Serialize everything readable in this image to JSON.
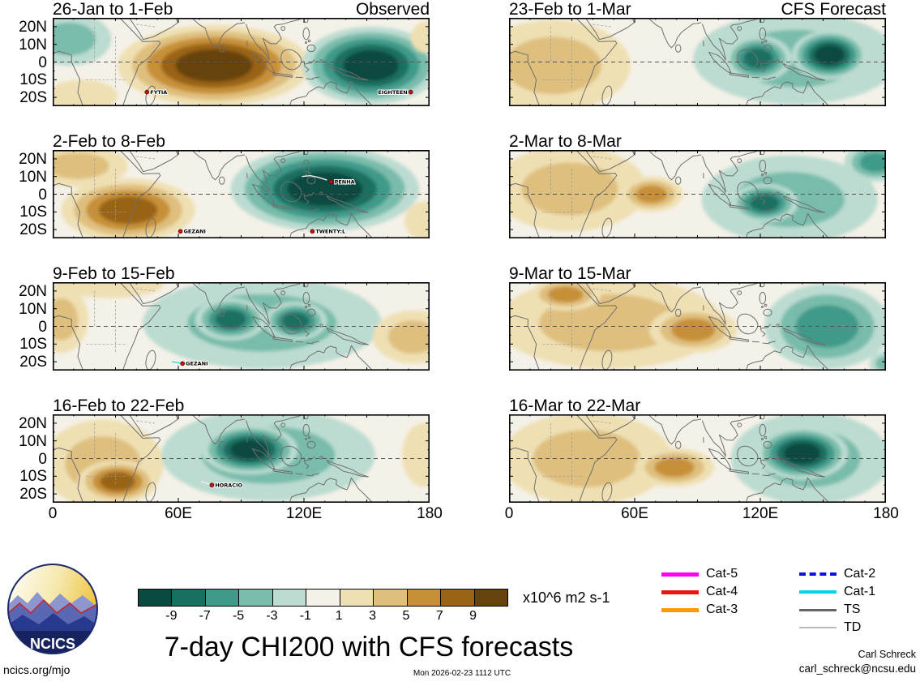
{
  "title": "7-day CHI200 with CFS forecasts",
  "logo": {
    "text": "NCICS"
  },
  "footer": {
    "site": "ncics.org/mjo",
    "timestamp": "Mon 2026-02-23 1112 UTC",
    "author": "Carl Schreck",
    "email": "carl_schreck@ncsu.edu"
  },
  "axes": {
    "lat_labels": [
      "20N",
      "10N",
      "0",
      "10S",
      "20S"
    ],
    "lat_values": [
      20,
      10,
      0,
      -10,
      -20
    ],
    "lon_labels": [
      "0",
      "60E",
      "120E",
      "180"
    ],
    "lon_values": [
      0,
      60,
      120,
      180
    ]
  },
  "legend": [
    {
      "label": "Cat-5",
      "color": "#ff00ee",
      "style": "solid",
      "weight": 5
    },
    {
      "label": "Cat-4",
      "color": "#ee1111",
      "style": "solid",
      "weight": 5
    },
    {
      "label": "Cat-3",
      "color": "#ff9900",
      "style": "solid",
      "weight": 5
    },
    {
      "label": "Cat-2",
      "color": "#1111dd",
      "style": "dashed",
      "weight": 4
    },
    {
      "label": "Cat-1",
      "color": "#00d5e0",
      "style": "solid",
      "weight": 4
    },
    {
      "label": "TS",
      "color": "#666666",
      "style": "solid",
      "weight": 3
    },
    {
      "label": "TD",
      "color": "#bbbbbb",
      "style": "solid",
      "weight": 2
    }
  ],
  "chart_data": {
    "type": "heatmap",
    "title": "7-day CHI200 with CFS forecasts",
    "variable": "200 hPa velocity potential (CHI200) anomaly",
    "unit": "x10^6 m2 s-1",
    "lon_range": [
      0,
      180
    ],
    "lat_range": [
      -25,
      25
    ],
    "levels": [
      -9,
      -7,
      -5,
      -3,
      -1,
      1,
      3,
      5,
      7,
      9
    ],
    "palette": [
      "#0b4a3f",
      "#1a7060",
      "#3f9a89",
      "#79bcab",
      "#bcdcd2",
      "#f4f1e8",
      "#efe0b4",
      "#dfbf7e",
      "#c79038",
      "#996416",
      "#66420c"
    ],
    "panels": [
      {
        "title": "26-Jan to 1-Feb",
        "corner": "Observed",
        "kind": "observed",
        "anomalies": [
          {
            "lon": 8,
            "lat": 13,
            "rlon": 20,
            "rlat": 15,
            "peak": -3.6
          },
          {
            "lon": 14,
            "lat": -19,
            "rlon": 17,
            "rlat": 9,
            "peak": 2.2
          },
          {
            "lon": 77,
            "lat": -2,
            "rlon": 46,
            "rlat": 23,
            "peak": 9.6
          },
          {
            "lon": 152,
            "lat": -2,
            "rlon": 33,
            "rlat": 22,
            "peak": -9.2
          },
          {
            "lon": 179,
            "lat": 14,
            "rlon": 8,
            "rlat": 9,
            "peak": 2.2
          }
        ],
        "storms": [
          {
            "name": "FYTIA",
            "lon": 45,
            "lat": -17
          },
          {
            "name": "EIGHTEEN",
            "lon": 171,
            "lat": -17
          }
        ]
      },
      {
        "title": "2-Feb to 8-Feb",
        "kind": "observed",
        "anomalies": [
          {
            "lon": 12,
            "lat": 16,
            "rlon": 24,
            "rlat": 12,
            "peak": 3.4
          },
          {
            "lon": 36,
            "lat": -9,
            "rlon": 32,
            "rlat": 18,
            "peak": 7.6
          },
          {
            "lon": 130,
            "lat": 3,
            "rlon": 45,
            "rlat": 24,
            "peak": -9.5
          },
          {
            "lon": 178,
            "lat": -15,
            "rlon": 10,
            "rlat": 11,
            "peak": 2.2
          }
        ],
        "storms": [
          {
            "name": "GEZANI",
            "lon": 61,
            "lat": -21
          },
          {
            "name": "PENHA",
            "lon": 133,
            "lat": 7,
            "track": [
              [
                119,
                10
              ],
              [
                123,
                10.5
              ],
              [
                127,
                9.5
              ],
              [
                131,
                8
              ]
            ],
            "track_color": "#f0f0f0"
          },
          {
            "name": "TWENTY:L",
            "lon": 124,
            "lat": -21,
            "track": [
              [
                120,
                -20
              ],
              [
                124,
                -21
              ]
            ],
            "track_color": "#f0f0f0"
          }
        ]
      },
      {
        "title": "9-Feb to 15-Feb",
        "kind": "observed",
        "anomalies": [
          {
            "lon": 27,
            "lat": 24,
            "rlon": 26,
            "rlat": 8,
            "peak": 2.6
          },
          {
            "lon": 4,
            "lat": 4,
            "rlon": 13,
            "rlat": 19,
            "peak": 3.4
          },
          {
            "lon": 100,
            "lat": 2,
            "rlon": 57,
            "rlat": 26,
            "peak": -3.6
          },
          {
            "lon": 85,
            "lat": 4,
            "rlon": 17,
            "rlat": 12,
            "peak": -8.6
          },
          {
            "lon": 116,
            "lat": 3,
            "rlon": 15,
            "rlat": 11,
            "peak": -7.5
          },
          {
            "lon": 172,
            "lat": -6,
            "rlon": 19,
            "rlat": 15,
            "peak": 4.6
          }
        ],
        "storms": [
          {
            "name": "GEZANI",
            "lon": 62,
            "lat": -21,
            "track": [
              [
                57,
                -20
              ],
              [
                62,
                -21
              ]
            ],
            "track_color": "#24d8e8"
          }
        ]
      },
      {
        "title": "16-Feb to 22-Feb",
        "kind": "observed",
        "anomalies": [
          {
            "lon": 24,
            "lat": -3,
            "rlon": 29,
            "rlat": 25,
            "peak": 3.2
          },
          {
            "lon": 31,
            "lat": -13,
            "rlon": 19,
            "rlat": 12,
            "peak": 7.2
          },
          {
            "lon": 103,
            "lat": 2,
            "rlon": 51,
            "rlat": 26,
            "peak": -4.2
          },
          {
            "lon": 94,
            "lat": 5,
            "rlon": 23,
            "rlat": 14,
            "peak": -9.7
          },
          {
            "lon": 177,
            "lat": 2,
            "rlon": 10,
            "rlat": 18,
            "peak": 2.6
          }
        ],
        "storms": [
          {
            "name": "HORACIO",
            "lon": 76,
            "lat": -15,
            "track": [
              [
                71,
                -13
              ],
              [
                76,
                -15
              ]
            ],
            "track_color": "#f0f0f0"
          }
        ]
      },
      {
        "title": "23-Feb to 1-Mar",
        "corner": "CFS Forecast",
        "kind": "forecast",
        "anomalies": [
          {
            "lon": 21,
            "lat": -2,
            "rlon": 37,
            "rlat": 26,
            "peak": 3.4
          },
          {
            "lon": 137,
            "lat": 2,
            "rlon": 49,
            "rlat": 26,
            "peak": -4.2
          },
          {
            "lon": 119,
            "lat": 2,
            "rlon": 16,
            "rlat": 13,
            "peak": -8.2
          },
          {
            "lon": 153,
            "lat": 4,
            "rlon": 18,
            "rlat": 14,
            "peak": -9.6
          }
        ],
        "storms": []
      },
      {
        "title": "2-Mar to 8-Mar",
        "kind": "forecast",
        "anomalies": [
          {
            "lon": 29,
            "lat": 3,
            "rlon": 37,
            "rlat": 24,
            "peak": 3.0
          },
          {
            "lon": 68,
            "lat": 0,
            "rlon": 15,
            "rlat": 10,
            "peak": 5.6
          },
          {
            "lon": 134,
            "lat": -3,
            "rlon": 42,
            "rlat": 25,
            "peak": -4.2
          },
          {
            "lon": 122,
            "lat": -5,
            "rlon": 16,
            "rlat": 11,
            "peak": -7.6
          },
          {
            "lon": 175,
            "lat": 18,
            "rlon": 15,
            "rlat": 11,
            "peak": -5.2
          }
        ],
        "storms": []
      },
      {
        "title": "9-Mar to 15-Mar",
        "kind": "forecast",
        "anomalies": [
          {
            "lon": 48,
            "lat": 2,
            "rlon": 54,
            "rlat": 26,
            "peak": 3.4
          },
          {
            "lon": 27,
            "lat": 18,
            "rlon": 17,
            "rlat": 9,
            "peak": 5.6
          },
          {
            "lon": 88,
            "lat": -2,
            "rlon": 21,
            "rlat": 13,
            "peak": 5.6
          },
          {
            "lon": 152,
            "lat": 0,
            "rlon": 30,
            "rlat": 24,
            "peak": -6.6
          },
          {
            "lon": 180,
            "lat": -21,
            "rlon": 8,
            "rlat": 7,
            "peak": -3.2
          }
        ],
        "storms": []
      },
      {
        "title": "16-Mar to 22-Mar",
        "kind": "forecast",
        "anomalies": [
          {
            "lon": 37,
            "lat": 0,
            "rlon": 41,
            "rlat": 26,
            "peak": 3.0
          },
          {
            "lon": 79,
            "lat": -5,
            "rlon": 19,
            "rlat": 11,
            "peak": 5.6
          },
          {
            "lon": 144,
            "lat": 0,
            "rlon": 38,
            "rlat": 26,
            "peak": -4.6
          },
          {
            "lon": 140,
            "lat": 3,
            "rlon": 22,
            "rlat": 15,
            "peak": -9.8
          }
        ],
        "storms": []
      }
    ]
  }
}
